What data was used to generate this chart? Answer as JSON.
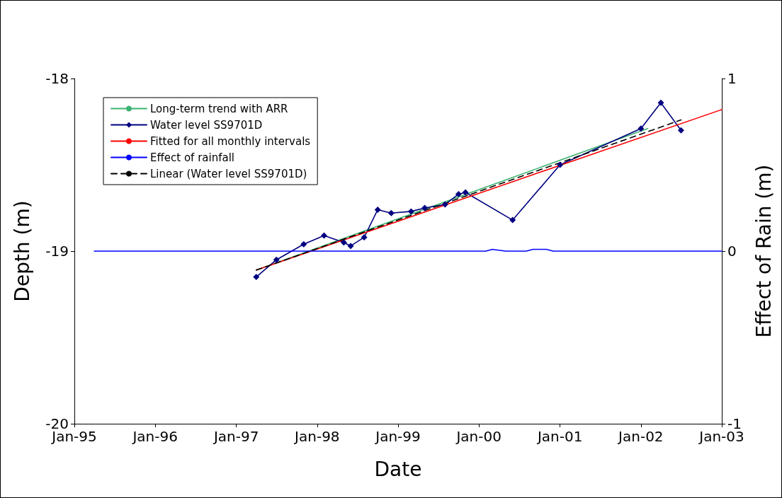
{
  "chart_data": {
    "type": "line",
    "xlabel": "Date",
    "ylabel": "Depth (m)",
    "y2label": "Effect of Rain (m)",
    "xlim": [
      "1995-01",
      "2003-01"
    ],
    "xticks": [
      {
        "value": "1995-01",
        "label": "Jan-95"
      },
      {
        "value": "1996-01",
        "label": "Jan-96"
      },
      {
        "value": "1997-01",
        "label": "Jan-97"
      },
      {
        "value": "1998-01",
        "label": "Jan-98"
      },
      {
        "value": "1999-01",
        "label": "Jan-99"
      },
      {
        "value": "2000-01",
        "label": "Jan-00"
      },
      {
        "value": "2001-01",
        "label": "Jan-01"
      },
      {
        "value": "2002-01",
        "label": "Jan-02"
      },
      {
        "value": "2003-01",
        "label": "Jan-03"
      }
    ],
    "ylim": [
      -20,
      -18
    ],
    "yticks": [
      -20,
      -19,
      -18
    ],
    "y2lim": [
      -1,
      1
    ],
    "y2ticks": [
      -1,
      0,
      1
    ],
    "grid": false,
    "legend": "top left",
    "series": [
      {
        "name": "Long-term trend with ARR",
        "color": "#3cb371",
        "marker": "none",
        "line_style": "solid",
        "x": [
          "1997-04",
          "2002-02"
        ],
        "values": [
          -19.11,
          -18.29
        ]
      },
      {
        "name": "Water level SS9701D",
        "color": "#000080",
        "marker": "diamond",
        "line_style": "solid",
        "x": [
          "1997-04",
          "1997-07",
          "1997-11",
          "1998-02",
          "1998-05",
          "1998-06",
          "1998-08",
          "1998-10",
          "1998-12",
          "1999-03",
          "1999-05",
          "1999-08",
          "1999-10",
          "1999-11",
          "2000-06",
          "2001-01",
          "2002-01",
          "2002-04",
          "2002-07"
        ],
        "values": [
          -19.15,
          -19.05,
          -18.96,
          -18.91,
          -18.95,
          -18.97,
          -18.92,
          -18.76,
          -18.78,
          -18.77,
          -18.75,
          -18.73,
          -18.67,
          -18.66,
          -18.82,
          -18.5,
          -18.29,
          -18.14,
          -18.3
        ]
      },
      {
        "name": "Fitted for all monthly intervals",
        "color": "#ff0000",
        "marker": "none",
        "line_style": "solid",
        "x": [
          "1997-04",
          "2003-01"
        ],
        "values": [
          -19.11,
          -18.18
        ]
      },
      {
        "name": "Effect of rainfall",
        "color": "#0000ff",
        "marker": "none",
        "line_style": "solid",
        "axis": "y2",
        "x": [
          "1995-04",
          "2000-02",
          "2000-03",
          "2000-05",
          "2000-08",
          "2000-09",
          "2000-11",
          "2000-12",
          "2003-01"
        ],
        "values": [
          0,
          0,
          0.01,
          0,
          0,
          0.01,
          0.01,
          0,
          0
        ]
      },
      {
        "name": "Linear (Water level SS9701D)",
        "color": "#000000",
        "marker": "none",
        "line_style": "dashed",
        "x": [
          "1997-04",
          "2002-07"
        ],
        "values": [
          -19.11,
          -18.24
        ]
      }
    ]
  }
}
